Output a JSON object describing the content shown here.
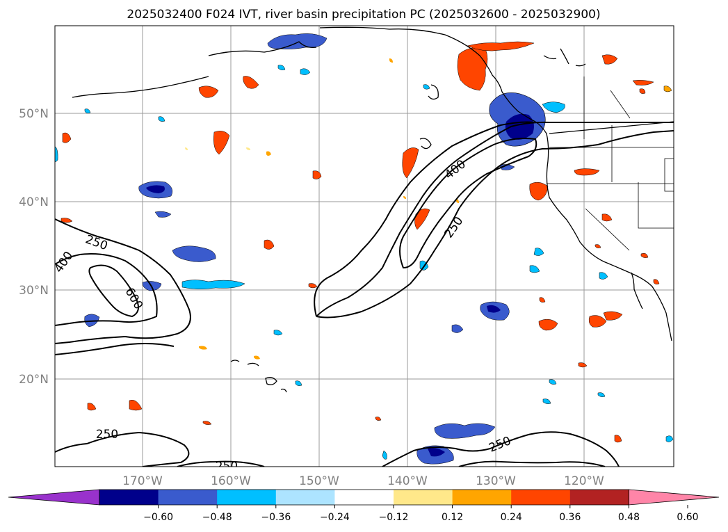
{
  "title": "2025032400 F024 IVT, river basin precipitation PC (2025032600 - 2025032900)",
  "lat_labels": [
    "50°N",
    "40°N",
    "30°N",
    "20°N"
  ],
  "lon_labels": [
    "170°W",
    "160°W",
    "150°W",
    "140°W",
    "130°W",
    "120°W"
  ],
  "contour_labels": {
    "c400_ne": "400",
    "c250_ne": "250",
    "c250_w": "250",
    "c400_w": "400",
    "c600_w": "600",
    "c250_sw": "250",
    "c250_bottom": "250",
    "c250_se": "250"
  },
  "colorbar": {
    "ticks": [
      "−0.60",
      "−0.48",
      "−0.36",
      "−0.24",
      "−0.12",
      "0.12",
      "0.24",
      "0.36",
      "0.48",
      "0.60"
    ],
    "colors": [
      "#9932cc",
      "#00008b",
      "#3a5bcd",
      "#00bfff",
      "#ade4ff",
      "#ffffff",
      "#ffe88a",
      "#ffa500",
      "#ff4500",
      "#b22222",
      "#ff85a8"
    ]
  },
  "colors": {
    "ocean": "#ffffff",
    "grid": "#9a9a9a",
    "contour": "#000000"
  },
  "chart_data": {
    "type": "contour map",
    "title": "2025032400 F024 IVT, river basin precipitation PC (2025032600 - 2025032900)",
    "lon_range": [
      -180,
      -110
    ],
    "lat_range": [
      10,
      60
    ],
    "ivt_contour_levels": [
      250,
      400,
      600
    ],
    "colorbar_levels": [
      -0.6,
      -0.48,
      -0.36,
      -0.24,
      -0.12,
      0.12,
      0.24,
      0.36,
      0.48,
      0.6
    ],
    "colorbar_extend": "both"
  }
}
